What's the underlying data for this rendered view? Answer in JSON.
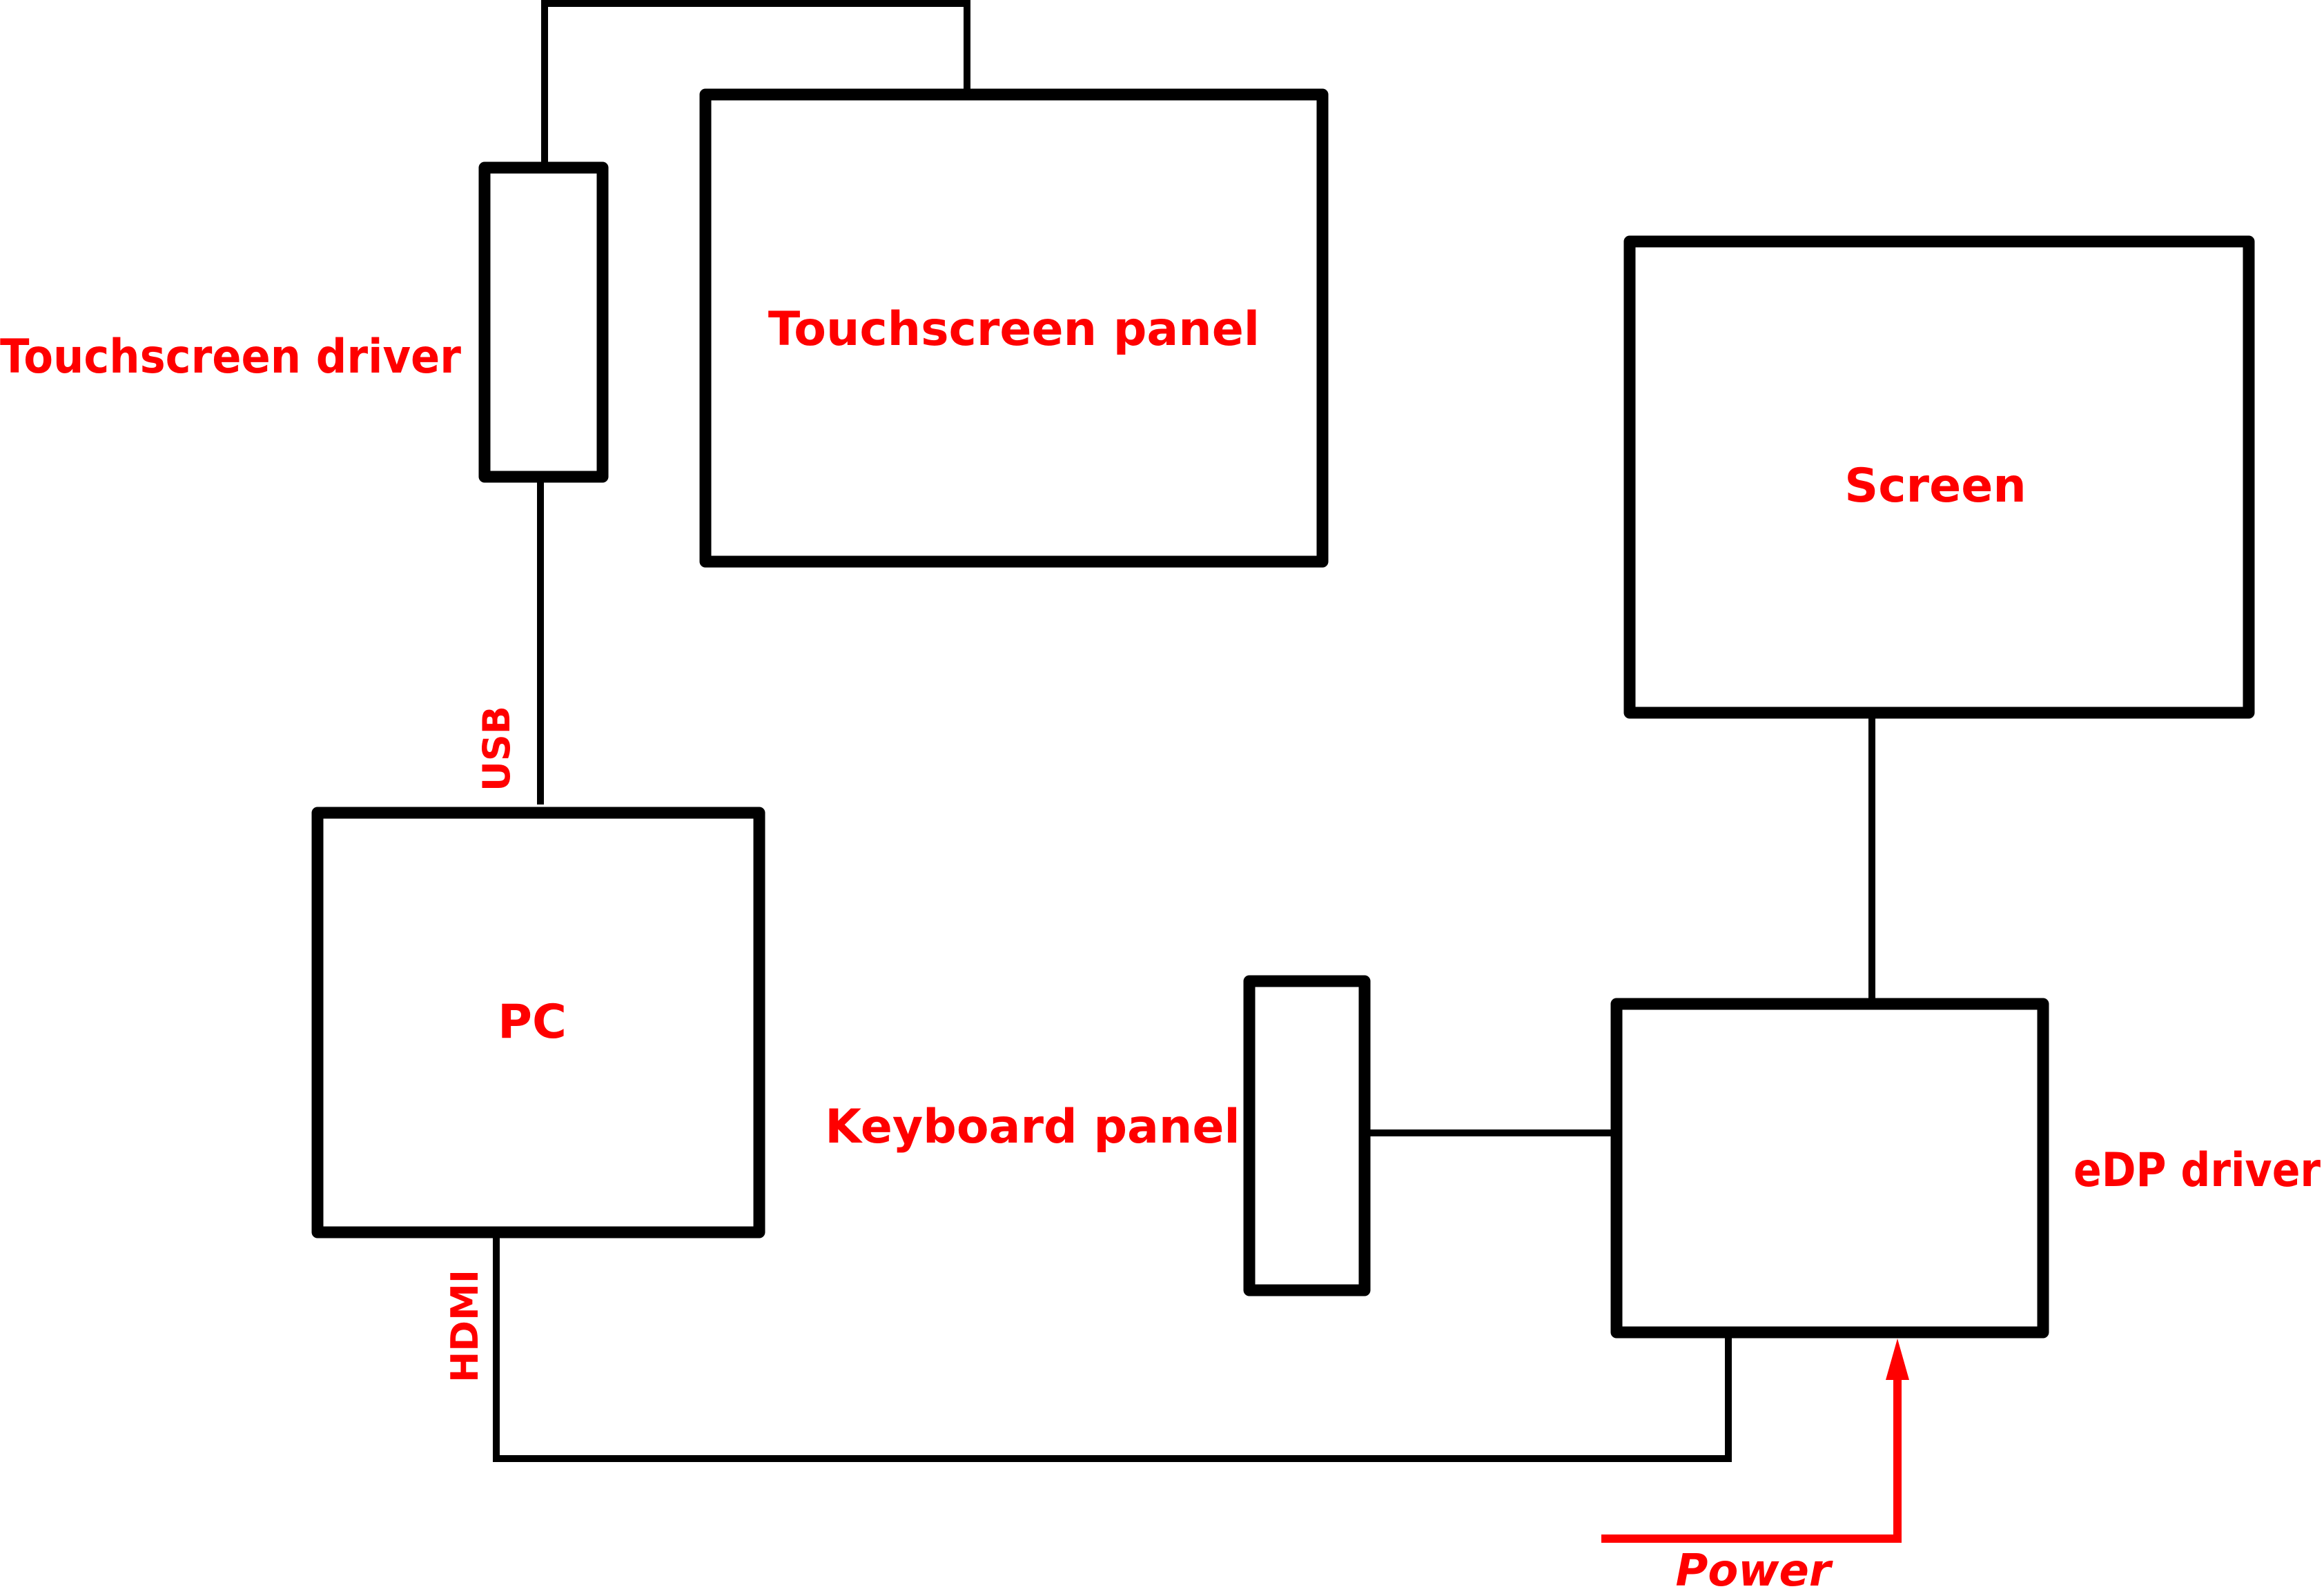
{
  "colors": {
    "line": "#000000",
    "text": "#ff0000",
    "power": "#ff0000",
    "background": "#ffffff"
  },
  "blocks": {
    "touchscreen_panel": "Touchscreen panel",
    "touchscreen_driver": "Touchscreen driver",
    "screen": "Screen",
    "pc": "PC",
    "keyboard_panel": "Keyboard panel",
    "edp_driver": "eDP driver"
  },
  "connections": {
    "usb": "USB",
    "hdmi": "HDMI",
    "power": "Power"
  }
}
